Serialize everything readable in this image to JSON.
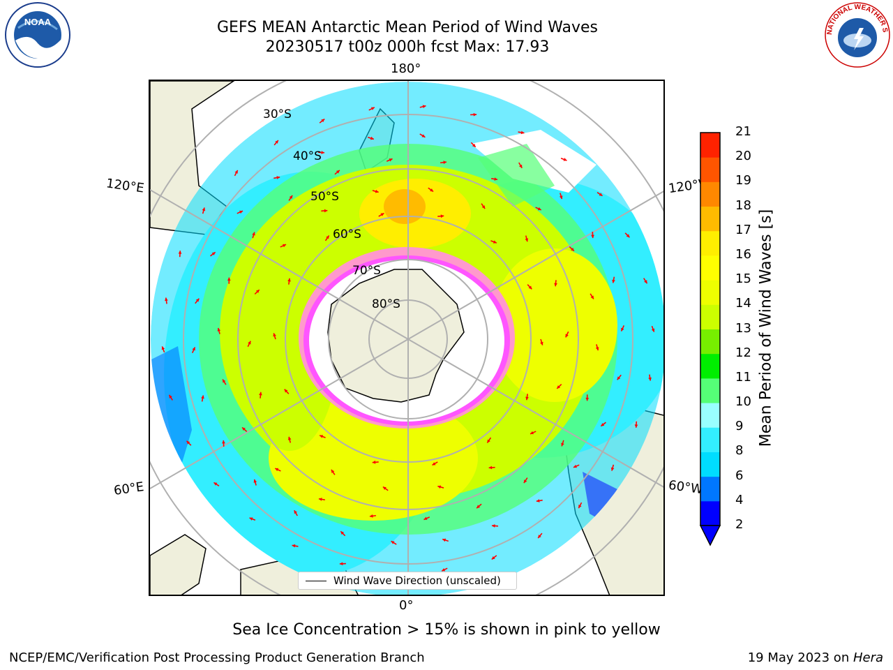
{
  "header": {
    "title_line1": "GEFS MEAN Antarctic Mean Period of Wind Waves",
    "title_line2": "20230517 t00z 000h fcst   Max: 17.93"
  },
  "logos": {
    "left": {
      "name": "noaa-logo",
      "text": "NOAA"
    },
    "right": {
      "name": "nws-logo",
      "text": "NATIONAL WEATHER SERVICE"
    }
  },
  "map": {
    "lon_labels": {
      "top": "180°",
      "bottom": "0°",
      "left_upper": "120°E",
      "left_lower": "60°E",
      "right_upper": "120°W",
      "right_lower": "60°W"
    },
    "lat_labels": [
      "30°S",
      "40°S",
      "50°S",
      "60°S",
      "70°S",
      "80°S"
    ],
    "land_color": "#efefdc",
    "ice_colors": [
      "#ff55ff",
      "#ff99cc",
      "#ffcc66"
    ],
    "arrow_color": "#ff0000"
  },
  "legend": {
    "label": "Wind Wave Direction (unscaled)"
  },
  "colorbar": {
    "label": "Mean Period of Wind Waves [s]",
    "ticks": [
      "2",
      "4",
      "6",
      "8",
      "9",
      "10",
      "11",
      "12",
      "13",
      "14",
      "15",
      "16",
      "17",
      "18",
      "19",
      "20",
      "21"
    ],
    "colors": [
      "#0000ff",
      "#0077ff",
      "#00ddff",
      "#33eeff",
      "#99ffff",
      "#55ff77",
      "#00ee00",
      "#77ee00",
      "#ccff00",
      "#eeff00",
      "#ffff00",
      "#ffee00",
      "#ffbb00",
      "#ff8800",
      "#ff5500",
      "#ff2200",
      "#ff0000"
    ],
    "extend_min_color": "#0000ff"
  },
  "notes": {
    "sea_ice": "Sea Ice Concentration > 15% is shown in pink to yellow"
  },
  "footer": {
    "left": "NCEP/EMC/Verification Post Processing Product Generation Branch",
    "date": "19 May 2023 on ",
    "host": "Hera"
  }
}
